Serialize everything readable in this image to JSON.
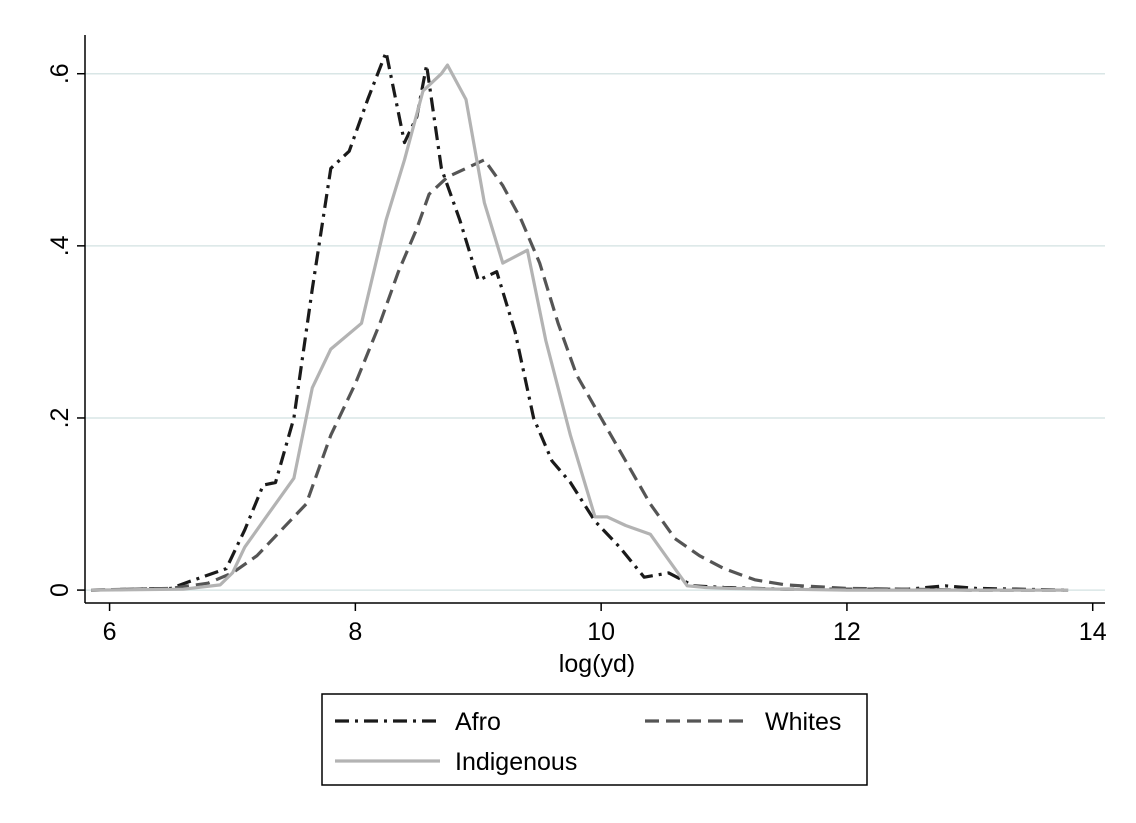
{
  "chart_data": {
    "type": "line",
    "title": "",
    "xlabel": "log(yd)",
    "ylabel": "",
    "xlim": [
      5.8,
      14.1
    ],
    "ylim": [
      -0.015,
      0.645
    ],
    "xticks": [
      "6",
      "8",
      "10",
      "12",
      "14"
    ],
    "yticks": [
      "0",
      ".2",
      ".4",
      ".6"
    ],
    "grid": true,
    "legend_position": "bottom",
    "series": [
      {
        "name": "Afro",
        "style": "dash-dot",
        "color": "#1a1a1a",
        "x": [
          5.85,
          6.5,
          6.65,
          6.95,
          7.1,
          7.25,
          7.35,
          7.5,
          7.65,
          7.8,
          7.95,
          8.1,
          8.25,
          8.4,
          8.5,
          8.58,
          8.7,
          8.85,
          9.0,
          9.15,
          9.3,
          9.45,
          9.6,
          9.75,
          9.95,
          10.15,
          10.35,
          10.55,
          10.75,
          11.0,
          11.5,
          12.0,
          12.5,
          12.8,
          13.05,
          13.8
        ],
        "y": [
          0.0,
          0.002,
          0.01,
          0.025,
          0.07,
          0.122,
          0.125,
          0.2,
          0.35,
          0.49,
          0.51,
          0.57,
          0.625,
          0.52,
          0.55,
          0.61,
          0.49,
          0.43,
          0.36,
          0.37,
          0.3,
          0.2,
          0.15,
          0.125,
          0.08,
          0.05,
          0.015,
          0.02,
          0.005,
          0.003,
          0.001,
          0.001,
          0.001,
          0.005,
          0.002,
          0.0
        ]
      },
      {
        "name": "Whites",
        "style": "dashed",
        "color": "#555555",
        "x": [
          5.85,
          6.5,
          6.8,
          7.0,
          7.2,
          7.4,
          7.6,
          7.8,
          8.0,
          8.2,
          8.35,
          8.5,
          8.6,
          8.75,
          8.9,
          9.05,
          9.2,
          9.35,
          9.5,
          9.65,
          9.8,
          10.0,
          10.2,
          10.4,
          10.6,
          10.8,
          11.0,
          11.25,
          11.5,
          12.0,
          12.5,
          13.0,
          13.8
        ],
        "y": [
          0.0,
          0.002,
          0.008,
          0.02,
          0.04,
          0.07,
          0.1,
          0.18,
          0.24,
          0.31,
          0.37,
          0.42,
          0.46,
          0.48,
          0.49,
          0.5,
          0.47,
          0.43,
          0.38,
          0.31,
          0.25,
          0.2,
          0.15,
          0.1,
          0.06,
          0.04,
          0.025,
          0.012,
          0.006,
          0.002,
          0.001,
          0.0,
          0.0
        ]
      },
      {
        "name": "Indigenous",
        "style": "solid",
        "color": "#b3b3b3",
        "x": [
          5.85,
          6.6,
          6.9,
          7.0,
          7.1,
          7.3,
          7.5,
          7.65,
          7.8,
          8.05,
          8.25,
          8.4,
          8.55,
          8.7,
          8.75,
          8.9,
          9.05,
          9.2,
          9.4,
          9.55,
          9.75,
          9.95,
          10.05,
          10.2,
          10.4,
          10.55,
          10.7,
          10.85,
          11.05,
          11.5,
          12.0,
          13.0,
          13.8
        ],
        "y": [
          0.0,
          0.001,
          0.006,
          0.02,
          0.05,
          0.09,
          0.13,
          0.235,
          0.28,
          0.31,
          0.43,
          0.5,
          0.58,
          0.6,
          0.61,
          0.57,
          0.45,
          0.38,
          0.395,
          0.29,
          0.18,
          0.085,
          0.085,
          0.075,
          0.065,
          0.035,
          0.005,
          0.003,
          0.002,
          0.001,
          0.0,
          0.0,
          0.0
        ]
      }
    ]
  }
}
